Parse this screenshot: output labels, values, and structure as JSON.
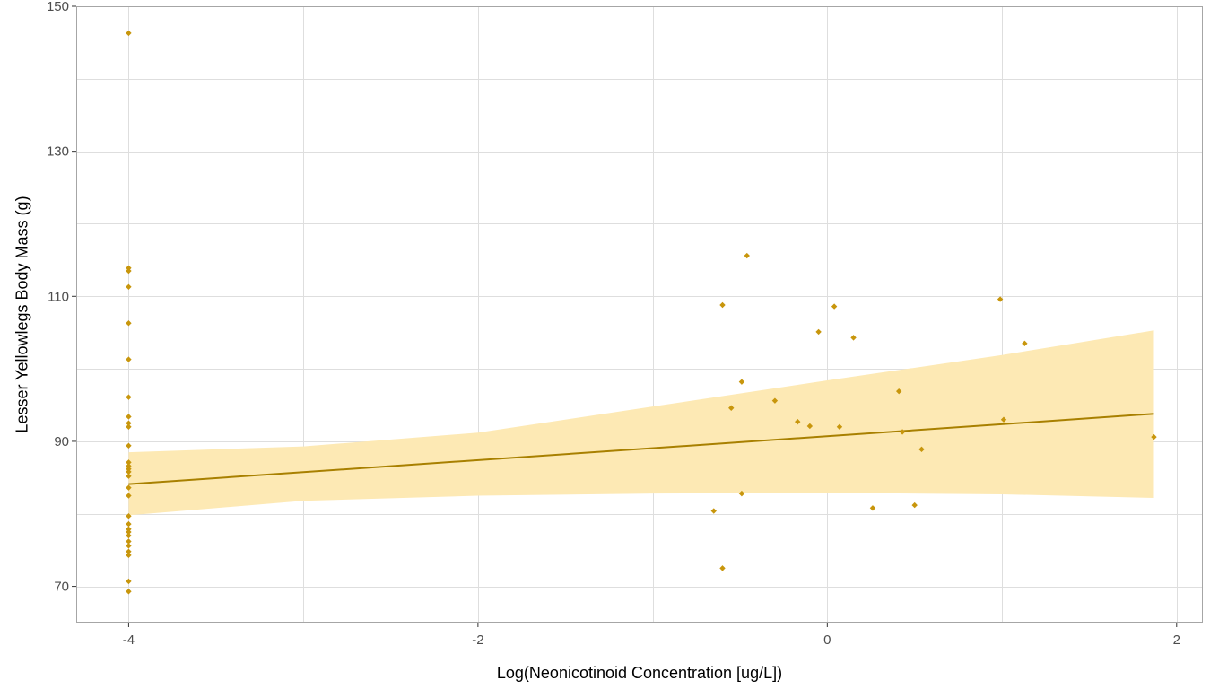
{
  "chart_data": {
    "type": "scatter",
    "title": "",
    "xlabel": "Log(Neonicotinoid Concentration [ug/L])",
    "ylabel": "Lesser Yellowlegs Body Mass (g)",
    "xlim": [
      -4.3,
      2.15
    ],
    "ylim": [
      65,
      150
    ],
    "x_ticks": [
      -4,
      -2,
      0,
      2
    ],
    "x_tick_labels": [
      "-4",
      "-2",
      "0",
      "2"
    ],
    "y_ticks": [
      70,
      90,
      110,
      130,
      150
    ],
    "y_tick_labels": [
      "70",
      "90",
      "110",
      "130",
      "150"
    ],
    "grid": true,
    "legend": "none",
    "colors": {
      "points": "#c8960c",
      "line": "#a88000",
      "band": "#fde9b4",
      "grid": "#dedede",
      "frame": "#a6a6a6"
    },
    "points": [
      {
        "x": -4,
        "y": 146.3
      },
      {
        "x": -4,
        "y": 113.9
      },
      {
        "x": -4,
        "y": 113.5
      },
      {
        "x": -4,
        "y": 111.3
      },
      {
        "x": -4,
        "y": 106.3
      },
      {
        "x": -4,
        "y": 101.3
      },
      {
        "x": -4,
        "y": 96.1
      },
      {
        "x": -4,
        "y": 93.4
      },
      {
        "x": -4,
        "y": 92.5
      },
      {
        "x": -4,
        "y": 92.0
      },
      {
        "x": -4,
        "y": 89.4
      },
      {
        "x": -4,
        "y": 87.1
      },
      {
        "x": -4,
        "y": 86.6
      },
      {
        "x": -4,
        "y": 86.2
      },
      {
        "x": -4,
        "y": 85.8
      },
      {
        "x": -4,
        "y": 85.2
      },
      {
        "x": -4,
        "y": 83.6
      },
      {
        "x": -4,
        "y": 82.5
      },
      {
        "x": -4,
        "y": 79.7
      },
      {
        "x": -4,
        "y": 78.6
      },
      {
        "x": -4,
        "y": 77.9
      },
      {
        "x": -4,
        "y": 77.5
      },
      {
        "x": -4,
        "y": 77.0
      },
      {
        "x": -4,
        "y": 76.2
      },
      {
        "x": -4,
        "y": 75.6
      },
      {
        "x": -4,
        "y": 74.8
      },
      {
        "x": -4,
        "y": 74.3
      },
      {
        "x": -4,
        "y": 70.7
      },
      {
        "x": -4,
        "y": 69.3
      },
      {
        "x": -0.65,
        "y": 80.4
      },
      {
        "x": -0.6,
        "y": 108.8
      },
      {
        "x": -0.6,
        "y": 72.5
      },
      {
        "x": -0.55,
        "y": 94.6
      },
      {
        "x": -0.49,
        "y": 98.2
      },
      {
        "x": -0.49,
        "y": 82.8
      },
      {
        "x": -0.46,
        "y": 115.6
      },
      {
        "x": -0.3,
        "y": 95.6
      },
      {
        "x": -0.17,
        "y": 92.7
      },
      {
        "x": -0.1,
        "y": 92.1
      },
      {
        "x": -0.05,
        "y": 105.1
      },
      {
        "x": 0.04,
        "y": 108.6
      },
      {
        "x": 0.07,
        "y": 92.0
      },
      {
        "x": 0.15,
        "y": 104.3
      },
      {
        "x": 0.26,
        "y": 80.8
      },
      {
        "x": 0.41,
        "y": 96.9
      },
      {
        "x": 0.43,
        "y": 91.3
      },
      {
        "x": 0.5,
        "y": 81.2
      },
      {
        "x": 0.54,
        "y": 88.9
      },
      {
        "x": 0.99,
        "y": 109.6
      },
      {
        "x": 1.01,
        "y": 93.0
      },
      {
        "x": 1.13,
        "y": 103.5
      },
      {
        "x": 1.87,
        "y": 90.6
      }
    ],
    "fit_line": {
      "x": [
        -4,
        1.87
      ],
      "y": [
        84.1,
        93.8
      ]
    },
    "confidence_band": {
      "x": [
        -4,
        -3,
        -2,
        -1,
        0,
        1,
        1.87
      ],
      "lower": [
        79.8,
        81.8,
        82.5,
        82.8,
        82.9,
        82.7,
        82.2
      ],
      "upper": [
        88.5,
        89.3,
        91.2,
        94.8,
        98.4,
        101.9,
        105.3
      ]
    }
  }
}
